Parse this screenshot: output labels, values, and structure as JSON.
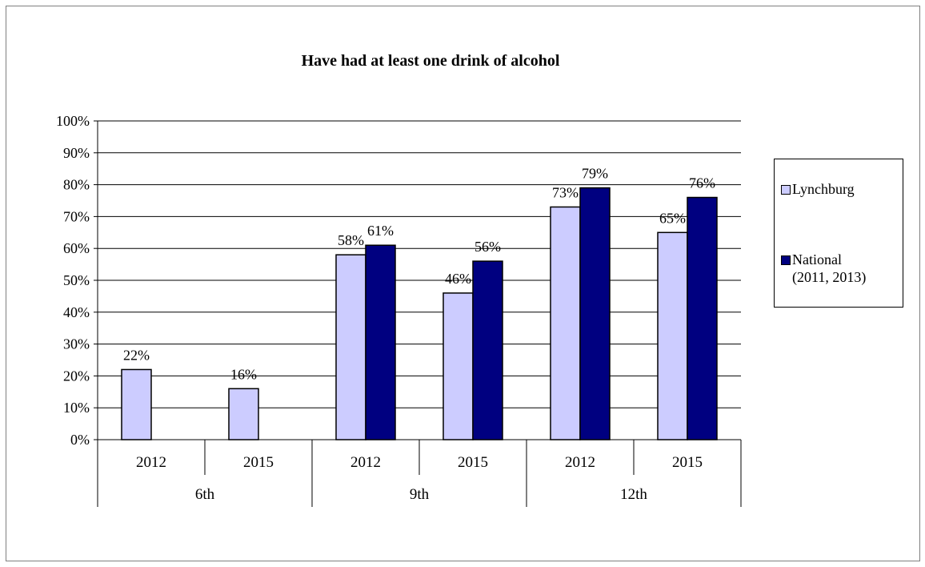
{
  "chart_data": {
    "type": "bar",
    "title": "Have had at least one drink of alcohol",
    "ylim": [
      0,
      100
    ],
    "yticks": [
      "0%",
      "10%",
      "20%",
      "30%",
      "40%",
      "50%",
      "60%",
      "70%",
      "80%",
      "90%",
      "100%"
    ],
    "categories": [
      "2012",
      "2015",
      "2012",
      "2015",
      "2012",
      "2015"
    ],
    "groups": [
      "6th",
      "9th",
      "12th"
    ],
    "group_spans": [
      2,
      2,
      2
    ],
    "series": [
      {
        "name": "Lynchburg",
        "color": "#ccccff",
        "values": [
          22,
          16,
          58,
          46,
          73,
          65
        ],
        "labels": [
          "22%",
          "16%",
          "58%",
          "46%",
          "73%",
          "65%"
        ]
      },
      {
        "name": "National (2011, 2013)",
        "color": "#000080",
        "values": [
          null,
          null,
          61,
          56,
          79,
          76
        ],
        "labels": [
          "",
          "",
          "61%",
          "56%",
          "79%",
          "76%"
        ]
      }
    ],
    "legend": {
      "position": "right",
      "items": [
        "Lynchburg",
        "National\n(2011, 2013)"
      ]
    },
    "grid": true
  }
}
